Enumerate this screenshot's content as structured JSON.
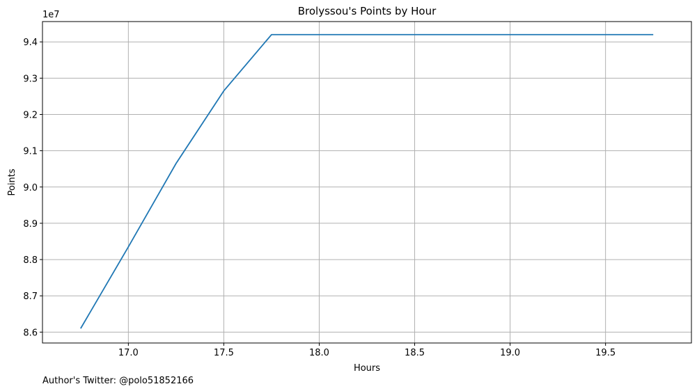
{
  "chart_data": {
    "type": "line",
    "title": "Brolyssou's Points by Hour",
    "xlabel": "Hours",
    "ylabel": "Points",
    "y_scale_label": "1e7",
    "xlim": [
      16.55,
      19.95
    ],
    "ylim": [
      8.57,
      9.456
    ],
    "x_ticks": [
      17.0,
      17.5,
      18.0,
      18.5,
      19.0,
      19.5
    ],
    "x_tick_labels": [
      "17.0",
      "17.5",
      "18.0",
      "18.5",
      "19.0",
      "19.5"
    ],
    "y_ticks": [
      8.6,
      8.7,
      8.8,
      8.9,
      9.0,
      9.1,
      9.2,
      9.3,
      9.4
    ],
    "y_tick_labels": [
      "8.6",
      "8.7",
      "8.8",
      "8.9",
      "9.0",
      "9.1",
      "9.2",
      "9.3",
      "9.4"
    ],
    "grid": true,
    "series": [
      {
        "color": "#1f77b4",
        "x": [
          16.75,
          17.0,
          17.25,
          17.5,
          17.75,
          18.0,
          18.25,
          18.5,
          18.75,
          19.0,
          19.25,
          19.5,
          19.75
        ],
        "y": [
          86100000,
          88350000,
          90650000,
          92650000,
          94200000,
          94200000,
          94200000,
          94200000,
          94200000,
          94200000,
          94200000,
          94200000,
          94200000
        ]
      }
    ]
  },
  "caption": "Author's Twitter: @polo51852166"
}
